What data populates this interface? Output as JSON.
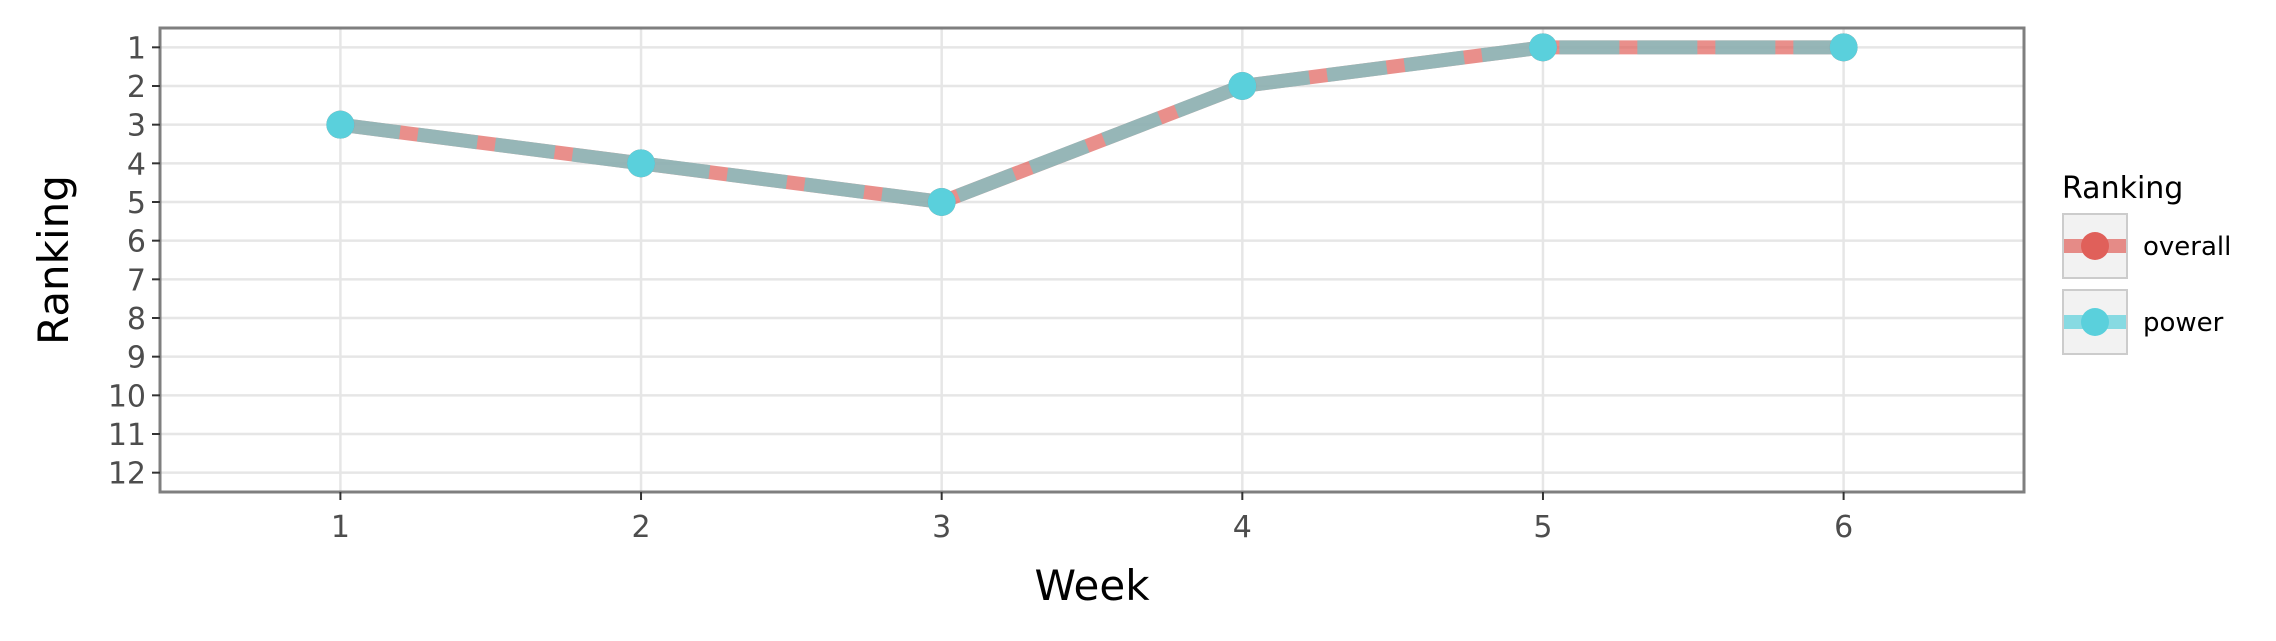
{
  "chart_data": {
    "type": "line",
    "xlabel": "Week",
    "ylabel": "Ranking",
    "x": [
      1,
      2,
      3,
      4,
      5,
      6
    ],
    "x_ticks": [
      "1",
      "2",
      "3",
      "4",
      "5",
      "6"
    ],
    "y_ticks": [
      "1",
      "2",
      "3",
      "4",
      "5",
      "6",
      "7",
      "8",
      "9",
      "10",
      "11",
      "12"
    ],
    "xlim": [
      0.4,
      6.6
    ],
    "ylim": [
      12.5,
      0.5
    ],
    "y_reversed": true,
    "grid": true,
    "legend": {
      "title": "Ranking",
      "placement": "right"
    },
    "series": [
      {
        "name": "overall",
        "color": "#e0605a",
        "values": [
          3,
          4,
          5,
          2,
          1,
          1
        ]
      },
      {
        "name": "power",
        "color": "#5ad0dc",
        "values": [
          3,
          4,
          5,
          2,
          1,
          1
        ]
      }
    ]
  }
}
